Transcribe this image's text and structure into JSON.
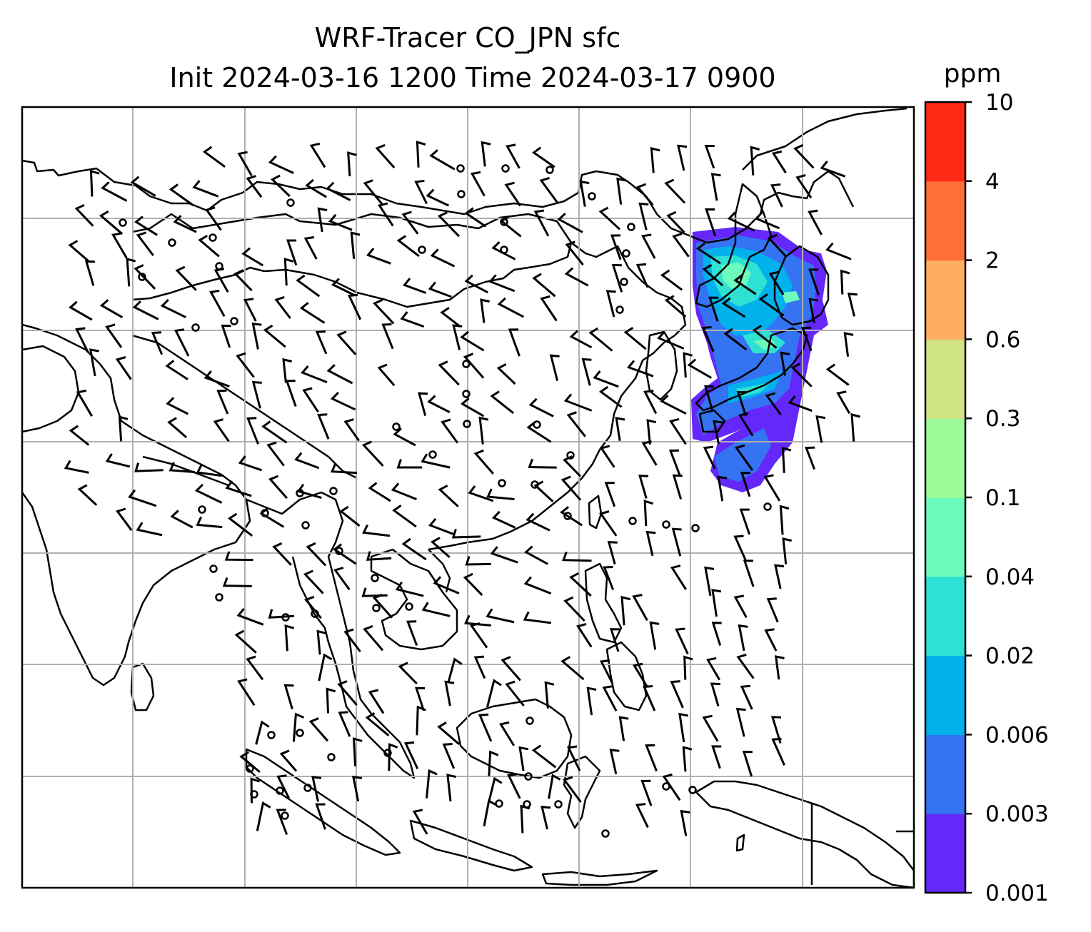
{
  "map": {
    "title_line1": "WRF-Tracer CO_JPN sfc",
    "title_line2": "Init 2024-03-16 1200 Time 2024-03-17 0900",
    "field": "CO_JPN",
    "level": "sfc",
    "init_time": "2024-03-16 1200",
    "valid_time": "2024-03-17 0900",
    "gridlines": true,
    "wind_barbs": true,
    "coastlines": true
  },
  "colorbar": {
    "unit": "ppm",
    "orientation": "vertical",
    "placement": "right",
    "tick_labels": [
      "0.001",
      "0.003",
      "0.006",
      "0.02",
      "0.04",
      "0.1",
      "0.3",
      "0.6",
      "2",
      "4",
      "10"
    ],
    "colors": [
      "#6428fa",
      "#3474f3",
      "#00b1ec",
      "#2fe1d3",
      "#6cfbbd",
      "#9cfb98",
      "#d0e385",
      "#feae60",
      "#fe7038",
      "#ff2a14"
    ]
  },
  "plume": {
    "region": "Japan and surrounding seas",
    "colors": [
      "#6428fa",
      "#3474f3",
      "#00b1ec",
      "#2fe1d3",
      "#6cfbbd"
    ]
  }
}
